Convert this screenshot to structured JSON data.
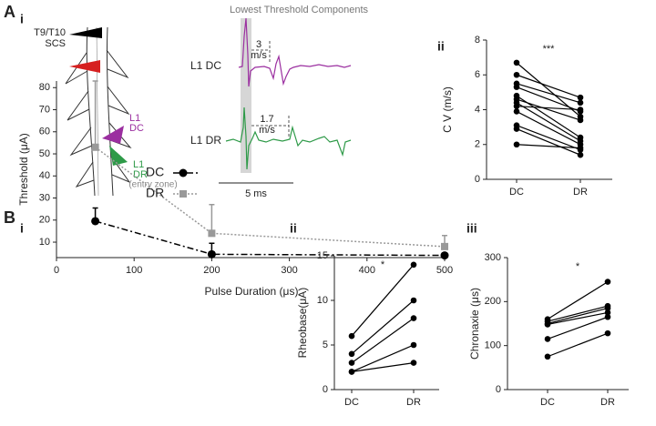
{
  "panel_labels": {
    "a": "A",
    "a_i": "i",
    "a_ii": "ii",
    "b": "B",
    "b_i": "i",
    "b_ii": "ii",
    "b_iii": "iii"
  },
  "diagram": {
    "title": "Lowest Threshold Components",
    "stim_level": "T9/T10",
    "stim_type": "SCS",
    "dc_electrode": [
      "L1",
      "DC"
    ],
    "dr_electrode": [
      "L1",
      "DR"
    ],
    "dr_note": "(entry zone)",
    "trace_dc": "L1 DC",
    "trace_dr": "L1 DR",
    "dc_velocity": [
      "3",
      "m/s"
    ],
    "dr_velocity": [
      "1.7",
      "m/s"
    ],
    "scale_bar": "5 ms"
  },
  "chart_data": [
    {
      "type": "paired",
      "y_label": "C V (m/s)",
      "annotation": "***",
      "categories": [
        "DC",
        "DR"
      ],
      "color": "#000000",
      "series": [
        {
          "values": [
            6.7,
            3.6
          ]
        },
        {
          "values": [
            6.0,
            4.7
          ]
        },
        {
          "values": [
            5.5,
            4.4
          ]
        },
        {
          "values": [
            5.3,
            3.9
          ]
        },
        {
          "values": [
            4.8,
            2.4
          ]
        },
        {
          "values": [
            4.6,
            3.4
          ]
        },
        {
          "values": [
            4.4,
            2.2
          ]
        },
        {
          "values": [
            4.2,
            4.0
          ]
        },
        {
          "values": [
            3.9,
            2.0
          ]
        },
        {
          "values": [
            3.1,
            1.7
          ]
        },
        {
          "values": [
            2.9,
            1.4
          ]
        },
        {
          "values": [
            2.0,
            1.8
          ]
        }
      ],
      "ylim": [
        0,
        8
      ],
      "yticks": [
        0,
        2,
        4,
        6,
        8
      ]
    },
    {
      "type": "line",
      "x_label": "Pulse Duration (μs)",
      "y_label": "Threshold (μA)",
      "x": [
        50,
        200,
        500
      ],
      "series": [
        {
          "name": "DC",
          "color": "#000000",
          "marker": "circle",
          "values": [
            19.5,
            4.5,
            4
          ],
          "errors": [
            6,
            5,
            1
          ]
        },
        {
          "name": "DR",
          "color": "#999999",
          "marker": "square",
          "values": [
            53,
            14,
            8
          ],
          "errors": [
            30,
            13,
            5
          ]
        }
      ],
      "xlim": [
        0,
        500
      ],
      "xticks": [
        0,
        100,
        200,
        300,
        400,
        500
      ],
      "ylim": [
        3,
        83
      ],
      "yticks": [
        10,
        20,
        30,
        40,
        50,
        60,
        70,
        80
      ]
    },
    {
      "type": "paired",
      "y_label": "Rheobase(μA)",
      "annotation": "*",
      "categories": [
        "DC",
        "DR"
      ],
      "color": "#000000",
      "series": [
        {
          "values": [
            6,
            14
          ]
        },
        {
          "values": [
            4,
            10
          ]
        },
        {
          "values": [
            3,
            8
          ]
        },
        {
          "values": [
            2,
            5
          ]
        },
        {
          "values": [
            2,
            3
          ]
        }
      ],
      "ylim": [
        0,
        15
      ],
      "yticks": [
        0,
        5,
        10,
        15
      ]
    },
    {
      "type": "paired",
      "y_label": "Chronaxie (μs)",
      "annotation": "*",
      "categories": [
        "DC",
        "DR"
      ],
      "color": "#000000",
      "series": [
        {
          "values": [
            160,
            245
          ]
        },
        {
          "values": [
            155,
            190
          ]
        },
        {
          "values": [
            150,
            185
          ]
        },
        {
          "values": [
            148,
            175
          ]
        },
        {
          "values": [
            115,
            165
          ]
        },
        {
          "values": [
            75,
            128
          ]
        }
      ],
      "ylim": [
        0,
        300
      ],
      "yticks": [
        0,
        100,
        200,
        300
      ]
    }
  ]
}
